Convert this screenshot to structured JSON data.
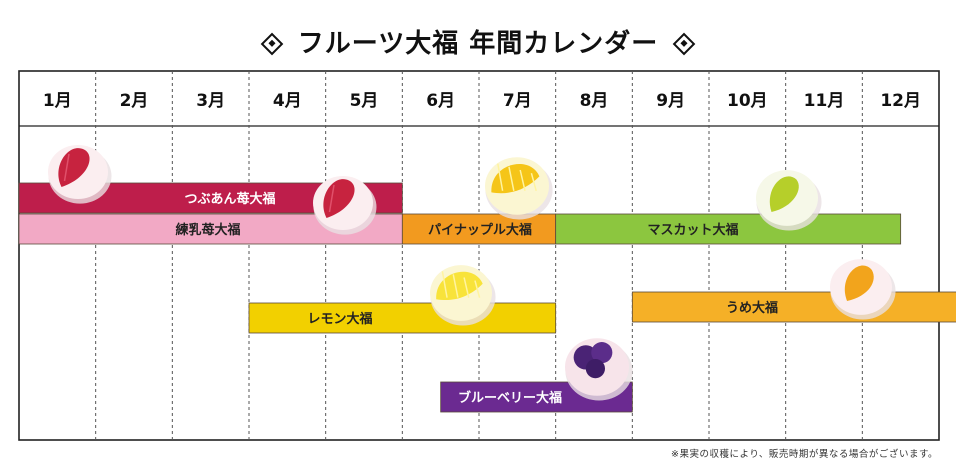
{
  "title": "フルーツ大福 年間カレンダー",
  "note": "※果実の収穫により、販売時期が異なる場合がございます。",
  "chart_data": {
    "type": "gantt",
    "title": "フルーツ大福 年間カレンダー",
    "categories": [
      "1月",
      "2月",
      "3月",
      "4月",
      "5月",
      "6月",
      "7月",
      "8月",
      "9月",
      "10月",
      "11月",
      "12月"
    ],
    "series": [
      {
        "name": "つぶあん苺大福",
        "start": 1,
        "end": 5,
        "color": "#be1e4b",
        "text_color": "#ffffff",
        "fruit": "strawberry"
      },
      {
        "name": "練乳苺大福",
        "start": 1,
        "end": 5,
        "color": "#f2a9c5",
        "text_color": "#222222",
        "fruit": "strawberry"
      },
      {
        "name": "パイナップル大福",
        "start": 6,
        "end": 7,
        "color": "#f29a1f",
        "text_color": "#222222",
        "fruit": "pineapple"
      },
      {
        "name": "マスカット大福",
        "start": 8,
        "end": 11.5,
        "color": "#8cc63f",
        "text_color": "#222222",
        "fruit": "muscat"
      },
      {
        "name": "レモン大福",
        "start": 4,
        "end": 7,
        "color": "#f2d000",
        "text_color": "#222222",
        "fruit": "lemon"
      },
      {
        "name": "うめ大福",
        "start": 9,
        "end": 12.5,
        "color": "#f5b027",
        "text_color": "#222222",
        "fruit": "ume"
      },
      {
        "name": "ブルーベリー大福",
        "start": 6.5,
        "end": 8,
        "color": "#6b2a91",
        "text_color": "#ffffff",
        "fruit": "blueberry"
      }
    ]
  }
}
